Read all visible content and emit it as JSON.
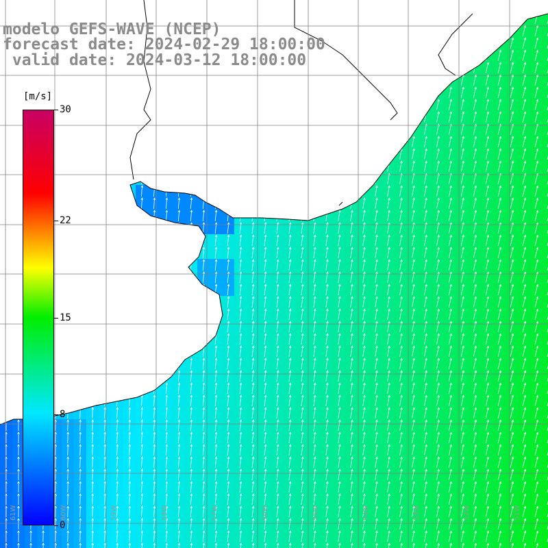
{
  "title": {
    "line1": "modelo GEFS-WAVE (NCEP)",
    "line2": "forecast date: 2024-02-29 18:00:00",
    "line3": "valid date: 2024-03-12 18:00:00"
  },
  "colorbar": {
    "unit": "[m/s]",
    "ticks": [
      {
        "label": "30",
        "value": 30
      },
      {
        "label": "22",
        "value": 22
      },
      {
        "label": "15",
        "value": 15
      },
      {
        "label": "8",
        "value": 8
      },
      {
        "label": "0",
        "value": 0
      }
    ],
    "range": [
      0,
      30
    ],
    "colors": [
      "#0000ff",
      "#00e8ff",
      "#00ee00",
      "#ffff00",
      "#ff0000",
      "#c80064"
    ]
  },
  "map": {
    "land_color": "#ffffff",
    "coast_color": "#000000",
    "grid_color": "#7f7f7f",
    "arrow_color": "#ffffff",
    "longitude_labels": [
      "61W",
      "60W",
      "59W",
      "58W",
      "57W",
      "56W",
      "55W",
      "54W",
      "53W",
      "52W",
      "51W"
    ]
  }
}
